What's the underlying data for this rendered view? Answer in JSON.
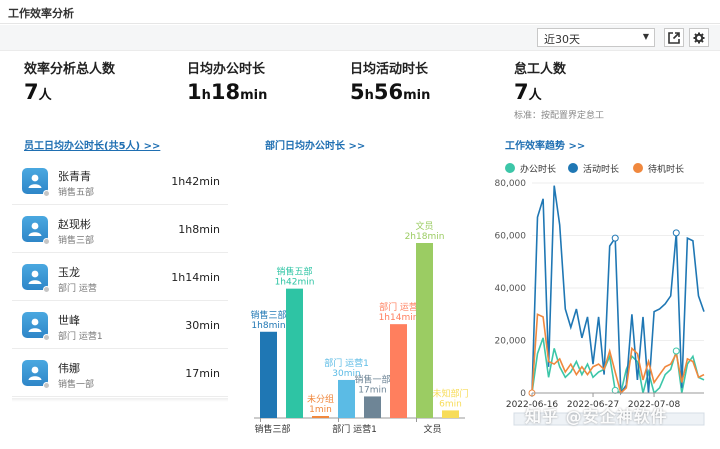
{
  "header": {
    "title": "工作效率分析"
  },
  "toolbar": {
    "range_select": "近30天",
    "export_icon": "export-icon",
    "settings_icon": "gear-icon"
  },
  "stats": [
    {
      "label": "效率分析总人数",
      "value": "7",
      "unit": "人"
    },
    {
      "label": "日均办公时长",
      "h": "1",
      "h_unit": "h",
      "m": "18",
      "m_unit": "min"
    },
    {
      "label": "日均活动时长",
      "h": "5",
      "h_unit": "h",
      "m": "56",
      "m_unit": "min"
    },
    {
      "label": "怠工人数",
      "value": "7",
      "unit": "人",
      "note": "标准：按配置界定怠工"
    }
  ],
  "sections": {
    "emp_title": "员工日均办公时长(共5人) >>",
    "dept_title": "部门日均办公时长 >>",
    "trend_title": "工作效率趋势 >>"
  },
  "employees": [
    {
      "name": "张青青",
      "dept": "销售五部",
      "time": "1h42min"
    },
    {
      "name": "赵现彬",
      "dept": "销售三部",
      "time": "1h8min"
    },
    {
      "name": "玉龙",
      "dept": "部门 运营",
      "time": "1h14min"
    },
    {
      "name": "世峰",
      "dept": "部门 运营1",
      "time": "30min"
    },
    {
      "name": "伟娜",
      "dept": "销售一部",
      "time": "17min"
    }
  ],
  "dept_chart": {
    "chart_data": {
      "type": "bar",
      "categories": [
        "销售三部",
        "销售五部",
        "未分组",
        "部门 运营1",
        "销售一部",
        "部门 运营",
        "文员",
        "未知部门"
      ],
      "values_min": [
        68,
        102,
        1,
        30,
        17,
        74,
        138,
        6
      ],
      "labels": [
        "1h8min",
        "1h42min",
        "1min",
        "30min",
        "17min",
        "1h14min",
        "2h18min",
        "6min"
      ],
      "x_tick_labels": [
        "销售三部",
        "部门 运营1",
        "文员"
      ],
      "colors": [
        "#1f77b4",
        "#2ec4a4",
        "#f0883e",
        "#5bbbe5",
        "#6e8596",
        "#ff7f5e",
        "#9bcc63",
        "#f7dc59"
      ]
    }
  },
  "trend_chart": {
    "chart_data": {
      "type": "line",
      "legend": [
        "办公时长",
        "活动时长",
        "待机时长"
      ],
      "colors": [
        "#3cc6a8",
        "#1f77b4",
        "#f0883e"
      ],
      "y_ticks": [
        "80,000",
        "60,000",
        "40,000",
        "20,000",
        "0"
      ],
      "ylim": [
        0,
        80000
      ],
      "x_ticks": [
        "2022-06-16",
        "2022-06-27",
        "2022-07-08"
      ],
      "series": [
        {
          "name": "办公时长",
          "values": [
            0,
            15000,
            21000,
            6000,
            17000,
            10000,
            6000,
            8000,
            12000,
            7000,
            11000,
            6000,
            8000,
            9000,
            14000,
            1000,
            0,
            9000,
            14000,
            12000,
            0,
            8000,
            0,
            2000,
            7000,
            9000,
            16000,
            0,
            11000,
            14000,
            6000,
            5000
          ]
        },
        {
          "name": "活动时长",
          "values": [
            0,
            67000,
            74000,
            10000,
            79000,
            64000,
            32000,
            25000,
            32000,
            21000,
            29000,
            11000,
            29000,
            7000,
            56000,
            59000,
            0,
            3000,
            30000,
            5000,
            29000,
            0,
            31000,
            32000,
            34000,
            37000,
            61000,
            2000,
            59000,
            58000,
            37000,
            31000
          ]
        },
        {
          "name": "待机时长",
          "values": [
            0,
            30000,
            29000,
            12000,
            11000,
            13000,
            8000,
            11000,
            7000,
            10000,
            7000,
            10000,
            11000,
            9000,
            16000,
            8000,
            0,
            2000,
            17000,
            15000,
            5000,
            12000,
            4000,
            7000,
            10000,
            11000,
            15000,
            4000,
            13000,
            12000,
            6000,
            7000
          ]
        }
      ]
    }
  },
  "watermark": "知乎 @安企神软件"
}
